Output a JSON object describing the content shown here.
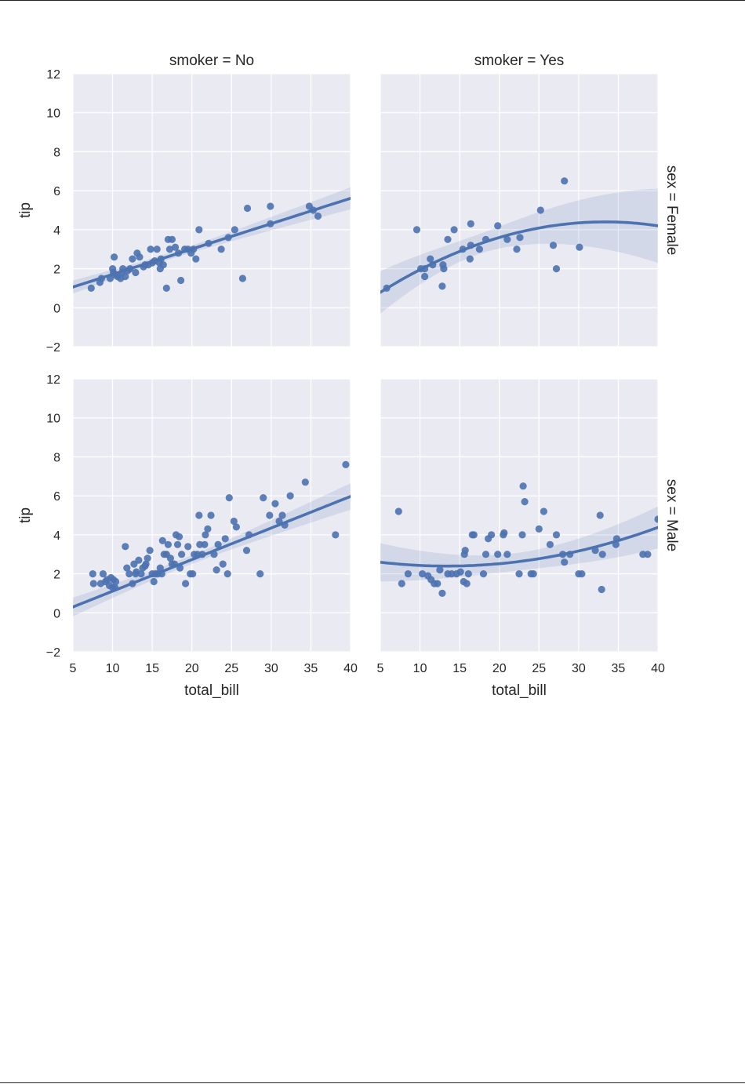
{
  "chart_data": {
    "type": "scatter",
    "layout": "facet-grid",
    "col_var": "smoker",
    "row_var": "sex",
    "col_titles": [
      "smoker = No",
      "smoker = Yes"
    ],
    "row_titles": [
      "sex = Female",
      "sex = Male"
    ],
    "xlabel": "total_bill",
    "ylabel": "tip",
    "xlim": [
      5,
      40
    ],
    "ylim": [
      -2,
      12
    ],
    "xticks": [
      5,
      10,
      15,
      20,
      25,
      30,
      35,
      40
    ],
    "yticks": [
      -2,
      0,
      2,
      4,
      6,
      8,
      10,
      12
    ],
    "grid": true,
    "colors": {
      "background": "#eaeaf2",
      "grid": "#ffffff",
      "points": "#4c72b0",
      "fit": "#4c72b0",
      "ci": "#4c72b0"
    },
    "panels": [
      {
        "row": 0,
        "col": 0,
        "points": [
          [
            7.3,
            1.0
          ],
          [
            8.4,
            1.3
          ],
          [
            8.6,
            1.5
          ],
          [
            9.7,
            1.5
          ],
          [
            10.0,
            2.0
          ],
          [
            10.1,
            1.8
          ],
          [
            10.2,
            2.6
          ],
          [
            10.3,
            1.7
          ],
          [
            10.6,
            1.6
          ],
          [
            11.0,
            1.5
          ],
          [
            11.2,
            1.8
          ],
          [
            11.3,
            2.0
          ],
          [
            11.6,
            1.6
          ],
          [
            11.9,
            1.9
          ],
          [
            12.2,
            2.0
          ],
          [
            12.5,
            2.5
          ],
          [
            12.9,
            1.8
          ],
          [
            13.1,
            2.8
          ],
          [
            13.4,
            2.6
          ],
          [
            13.9,
            2.1
          ],
          [
            14.1,
            2.2
          ],
          [
            14.5,
            2.2
          ],
          [
            14.8,
            3.0
          ],
          [
            15.0,
            2.3
          ],
          [
            15.3,
            2.4
          ],
          [
            15.6,
            3.0
          ],
          [
            15.9,
            2.3
          ],
          [
            16.0,
            2.0
          ],
          [
            16.1,
            2.5
          ],
          [
            16.4,
            2.2
          ],
          [
            16.8,
            1.0
          ],
          [
            17.0,
            3.5
          ],
          [
            17.2,
            3.0
          ],
          [
            17.5,
            3.5
          ],
          [
            17.9,
            3.1
          ],
          [
            18.3,
            2.8
          ],
          [
            18.6,
            1.4
          ],
          [
            19.1,
            3.0
          ],
          [
            19.5,
            3.0
          ],
          [
            19.9,
            2.8
          ],
          [
            20.2,
            3.0
          ],
          [
            20.5,
            2.5
          ],
          [
            20.9,
            4.0
          ],
          [
            22.1,
            3.3
          ],
          [
            23.7,
            3.0
          ],
          [
            24.6,
            3.6
          ],
          [
            25.4,
            4.0
          ],
          [
            26.4,
            1.5
          ],
          [
            27.0,
            5.1
          ],
          [
            29.9,
            4.3
          ],
          [
            29.9,
            5.2
          ],
          [
            34.8,
            5.2
          ],
          [
            35.3,
            5.0
          ],
          [
            35.9,
            4.7
          ]
        ],
        "fit": {
          "order": 1,
          "coef": [
            0.41,
            0.13
          ]
        }
      },
      {
        "row": 0,
        "col": 1,
        "points": [
          [
            5.8,
            1.0
          ],
          [
            9.6,
            4.0
          ],
          [
            10.1,
            2.0
          ],
          [
            10.6,
            1.6
          ],
          [
            10.6,
            2.0
          ],
          [
            11.3,
            2.5
          ],
          [
            11.6,
            2.2
          ],
          [
            12.8,
            1.1
          ],
          [
            12.9,
            2.2
          ],
          [
            13.0,
            2.0
          ],
          [
            13.5,
            3.5
          ],
          [
            14.3,
            4.0
          ],
          [
            15.4,
            3.0
          ],
          [
            16.3,
            2.5
          ],
          [
            16.4,
            3.2
          ],
          [
            16.4,
            4.3
          ],
          [
            17.5,
            3.0
          ],
          [
            18.3,
            3.5
          ],
          [
            19.8,
            4.2
          ],
          [
            21.0,
            3.5
          ],
          [
            22.2,
            3.0
          ],
          [
            22.6,
            3.6
          ],
          [
            25.2,
            5.0
          ],
          [
            26.8,
            3.2
          ],
          [
            27.2,
            2.0
          ],
          [
            28.2,
            6.5
          ],
          [
            30.1,
            3.1
          ]
        ],
        "fit": {
          "order": 2,
          "coef": [
            -0.6,
            0.3,
            -0.0045
          ]
        }
      },
      {
        "row": 1,
        "col": 0,
        "points": [
          [
            7.5,
            2.0
          ],
          [
            7.6,
            1.5
          ],
          [
            8.5,
            1.5
          ],
          [
            8.8,
            2.0
          ],
          [
            9.1,
            1.6
          ],
          [
            9.3,
            1.7
          ],
          [
            9.6,
            1.4
          ],
          [
            9.8,
            1.8
          ],
          [
            10.0,
            1.3
          ],
          [
            10.1,
            1.7
          ],
          [
            10.3,
            1.3
          ],
          [
            10.4,
            1.6
          ],
          [
            11.6,
            3.4
          ],
          [
            11.8,
            2.3
          ],
          [
            12.1,
            2.0
          ],
          [
            12.5,
            1.5
          ],
          [
            12.7,
            2.5
          ],
          [
            12.9,
            2.0
          ],
          [
            13.0,
            2.1
          ],
          [
            13.3,
            2.7
          ],
          [
            13.6,
            2.0
          ],
          [
            13.8,
            2.3
          ],
          [
            14.1,
            2.4
          ],
          [
            14.2,
            2.5
          ],
          [
            14.4,
            2.8
          ],
          [
            14.7,
            3.2
          ],
          [
            15.0,
            2.0
          ],
          [
            15.2,
            1.6
          ],
          [
            15.4,
            2.0
          ],
          [
            15.7,
            2.0
          ],
          [
            16.0,
            2.3
          ],
          [
            16.2,
            2.0
          ],
          [
            16.3,
            3.7
          ],
          [
            16.5,
            3.0
          ],
          [
            16.8,
            3.0
          ],
          [
            17.0,
            3.5
          ],
          [
            17.3,
            2.8
          ],
          [
            17.5,
            2.5
          ],
          [
            17.8,
            2.5
          ],
          [
            18.0,
            4.0
          ],
          [
            18.2,
            3.5
          ],
          [
            18.4,
            3.9
          ],
          [
            18.5,
            2.3
          ],
          [
            18.7,
            3.0
          ],
          [
            19.2,
            1.5
          ],
          [
            19.5,
            3.4
          ],
          [
            19.8,
            2.0
          ],
          [
            20.1,
            2.0
          ],
          [
            20.3,
            3.0
          ],
          [
            20.7,
            3.0
          ],
          [
            20.9,
            5.0
          ],
          [
            21.0,
            3.5
          ],
          [
            21.3,
            3.0
          ],
          [
            21.6,
            3.5
          ],
          [
            21.7,
            4.0
          ],
          [
            22.0,
            4.3
          ],
          [
            22.4,
            5.0
          ],
          [
            22.8,
            3.0
          ],
          [
            23.1,
            2.2
          ],
          [
            23.3,
            3.5
          ],
          [
            23.9,
            2.5
          ],
          [
            24.2,
            3.8
          ],
          [
            24.5,
            2.0
          ],
          [
            24.7,
            5.9
          ],
          [
            25.3,
            4.7
          ],
          [
            25.6,
            4.4
          ],
          [
            26.9,
            3.2
          ],
          [
            27.2,
            4.0
          ],
          [
            28.6,
            2.0
          ],
          [
            29.0,
            5.9
          ],
          [
            29.8,
            5.0
          ],
          [
            30.5,
            5.6
          ],
          [
            31.0,
            4.7
          ],
          [
            31.4,
            5.0
          ],
          [
            31.7,
            4.5
          ],
          [
            32.4,
            6.0
          ],
          [
            34.3,
            6.7
          ],
          [
            38.1,
            4.0
          ],
          [
            39.4,
            7.6
          ]
        ],
        "fit": {
          "order": 1,
          "coef": [
            -0.51,
            0.162
          ]
        }
      },
      {
        "row": 1,
        "col": 1,
        "points": [
          [
            7.3,
            5.2
          ],
          [
            7.7,
            1.5
          ],
          [
            8.5,
            2.0
          ],
          [
            10.3,
            2.0
          ],
          [
            11.0,
            1.9
          ],
          [
            11.4,
            1.7
          ],
          [
            11.8,
            1.5
          ],
          [
            12.2,
            1.5
          ],
          [
            12.5,
            2.2
          ],
          [
            12.8,
            1.0
          ],
          [
            13.5,
            2.0
          ],
          [
            14.0,
            2.0
          ],
          [
            14.6,
            2.0
          ],
          [
            15.1,
            2.1
          ],
          [
            15.5,
            1.6
          ],
          [
            15.6,
            3.0
          ],
          [
            15.7,
            3.2
          ],
          [
            15.9,
            1.5
          ],
          [
            16.1,
            2.0
          ],
          [
            16.6,
            4.0
          ],
          [
            16.8,
            4.0
          ],
          [
            18.0,
            2.0
          ],
          [
            18.3,
            3.0
          ],
          [
            18.6,
            3.8
          ],
          [
            19.0,
            4.0
          ],
          [
            19.8,
            3.0
          ],
          [
            20.5,
            4.0
          ],
          [
            20.6,
            4.1
          ],
          [
            21.0,
            3.0
          ],
          [
            22.5,
            2.0
          ],
          [
            22.9,
            4.0
          ],
          [
            23.0,
            6.5
          ],
          [
            23.2,
            5.7
          ],
          [
            24.0,
            2.0
          ],
          [
            24.3,
            2.0
          ],
          [
            25.0,
            4.3
          ],
          [
            25.6,
            5.2
          ],
          [
            26.4,
            3.5
          ],
          [
            27.2,
            4.0
          ],
          [
            28.0,
            3.0
          ],
          [
            28.2,
            2.6
          ],
          [
            28.9,
            3.0
          ],
          [
            30.0,
            2.0
          ],
          [
            30.4,
            2.0
          ],
          [
            32.1,
            3.2
          ],
          [
            32.7,
            5.0
          ],
          [
            32.9,
            1.2
          ],
          [
            33.0,
            3.0
          ],
          [
            34.7,
            3.5
          ],
          [
            34.8,
            3.8
          ],
          [
            38.1,
            3.0
          ],
          [
            38.7,
            3.0
          ],
          [
            40.0,
            4.8
          ]
        ],
        "fit": {
          "order": 2,
          "coef": [
            2.9,
            -0.075,
            0.0028
          ]
        }
      }
    ]
  }
}
